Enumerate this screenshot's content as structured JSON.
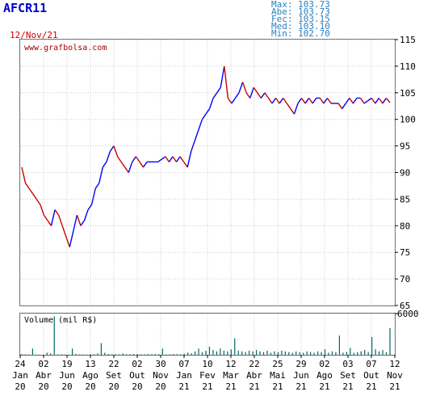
{
  "ticker": "AFCR11",
  "date_label": "12/Nov/21",
  "stats": [
    {
      "label": "Max:",
      "value": "103.73"
    },
    {
      "label": "Abe:",
      "value": "103.73"
    },
    {
      "label": "Fec:",
      "value": "103.15"
    },
    {
      "label": "Med:",
      "value": "103.10"
    },
    {
      "label": "Min:",
      "value": "102.70"
    }
  ],
  "watermark": "www.grafbolsa.com",
  "volume_label": "Volume (mil R$)",
  "colors": {
    "up": "#0000ff",
    "down": "#cc0000",
    "volume": "#006666",
    "grid": "#cccccc"
  },
  "chart_data": {
    "type": "line",
    "price_axis": {
      "ylim": [
        65,
        115
      ],
      "ticks": [
        65,
        70,
        75,
        80,
        85,
        90,
        95,
        100,
        105,
        110,
        115
      ]
    },
    "volume_axis": {
      "ylim": [
        0,
        6000
      ],
      "ticks": [
        6000
      ]
    },
    "x_ticks": [
      {
        "day": "24",
        "month": "Jan",
        "year": "20"
      },
      {
        "day": "02",
        "month": "Abr",
        "year": "20"
      },
      {
        "day": "19",
        "month": "Jun",
        "year": "20"
      },
      {
        "day": "13",
        "month": "Ago",
        "year": "20"
      },
      {
        "day": "22",
        "month": "Set",
        "year": "20"
      },
      {
        "day": "02",
        "month": "Out",
        "year": "20"
      },
      {
        "day": "30",
        "month": "Nov",
        "year": "20"
      },
      {
        "day": "07",
        "month": "Jan",
        "year": "21"
      },
      {
        "day": "10",
        "month": "Fev",
        "year": "21"
      },
      {
        "day": "12",
        "month": "Mar",
        "year": "21"
      },
      {
        "day": "22",
        "month": "Abr",
        "year": "21"
      },
      {
        "day": "25",
        "month": "Mai",
        "year": "21"
      },
      {
        "day": "29",
        "month": "Jun",
        "year": "21"
      },
      {
        "day": "02",
        "month": "Ago",
        "year": "21"
      },
      {
        "day": "03",
        "month": "Set",
        "year": "21"
      },
      {
        "day": "07",
        "month": "Out",
        "year": "21"
      },
      {
        "day": "12",
        "month": "Nov",
        "year": "21"
      }
    ],
    "price_series": [
      91,
      88,
      87,
      86,
      85,
      84,
      82,
      81,
      80,
      83,
      82,
      80,
      78,
      76,
      79,
      82,
      80,
      81,
      83,
      84,
      87,
      88,
      91,
      92,
      94,
      95,
      93,
      92,
      91,
      90,
      92,
      93,
      92,
      91,
      92,
      92,
      92,
      92,
      92.5,
      93,
      92,
      93,
      92,
      93,
      92,
      91,
      94,
      96,
      98,
      100,
      101,
      102,
      104,
      105,
      106,
      110,
      104,
      103,
      104,
      105,
      107,
      105,
      104,
      106,
      105,
      104,
      105,
      104,
      103,
      104,
      103,
      104,
      103,
      102,
      101,
      103,
      104,
      103,
      104,
      103,
      104,
      104,
      103,
      104,
      103,
      103,
      103,
      102,
      103,
      104,
      103,
      104,
      104,
      103,
      103.5,
      104,
      103,
      104,
      103,
      104,
      103.15
    ],
    "volume_series": [
      120,
      80,
      60,
      900,
      50,
      40,
      30,
      300,
      200,
      5600,
      60,
      80,
      40,
      30,
      900,
      100,
      60,
      50,
      40,
      80,
      100,
      200,
      1700,
      300,
      120,
      80,
      100,
      60,
      200,
      90,
      80,
      120,
      100,
      80,
      60,
      100,
      80,
      120,
      100,
      900,
      60,
      80,
      120,
      100,
      80,
      150,
      300,
      200,
      500,
      900,
      400,
      600,
      1200,
      700,
      500,
      900,
      600,
      500,
      800,
      2400,
      600,
      500,
      400,
      600,
      500,
      700,
      500,
      400,
      600,
      300,
      500,
      400,
      600,
      500,
      400,
      300,
      500,
      400,
      300,
      500,
      400,
      300,
      500,
      400,
      800,
      300,
      500,
      400,
      2800,
      300,
      400,
      1000,
      300,
      400,
      500,
      700,
      400,
      2600,
      800,
      500,
      700,
      400,
      3900
    ]
  }
}
